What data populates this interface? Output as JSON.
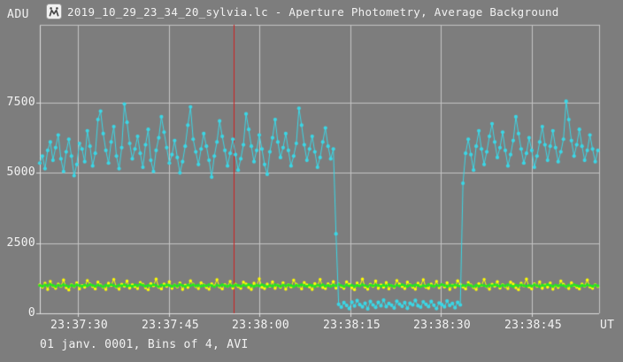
{
  "window": {
    "bg": "#7d7d7d"
  },
  "header": {
    "adu_label": "ADU",
    "icon_name": "tangra-app-icon",
    "title": "2019_10_29_23_34_20_sylvia.lc - Aperture Photometry, Average Background"
  },
  "footer": {
    "text": "01 janv. 0001, Bins of 4, AVI"
  },
  "colors": {
    "background": "#7d7d7d",
    "grid": "#c4c4c4",
    "axis": "#dedede",
    "text": "#f2f2f2",
    "cursor": "#cc2222",
    "target": "#3ad7e6",
    "comp_yellow": "#ffff00",
    "comp_green": "#22e522"
  },
  "chart_data": {
    "type": "scatter",
    "title": "Aperture Photometry, Average Background",
    "x_axis": {
      "label": "UT",
      "tick_labels": [
        "23:37:30",
        "23:37:45",
        "23:38:00",
        "23:38:15",
        "23:38:30",
        "23:38:45"
      ],
      "tick_seconds": [
        0,
        15,
        30,
        45,
        60,
        75
      ],
      "range_seconds": [
        -6.3,
        86.3
      ]
    },
    "y_axis": {
      "label": "ADU",
      "tick_labels": [
        "0",
        "2500",
        "5000",
        "7500"
      ],
      "tick_values": [
        0,
        2500,
        5000,
        7500
      ],
      "range": [
        0,
        10250
      ]
    },
    "cursor_second": 25.7,
    "event": {
      "description": "occultation drop of target light curve",
      "disappearance_second": 42.5,
      "reappearance_second": 63.5,
      "baseline_adu": 5900,
      "occulted_adu": 300
    },
    "sampling": {
      "start_second": -6.3,
      "interval_seconds": 0.437,
      "count": 212
    },
    "series": [
      {
        "name": "comparison-star-yellow",
        "color_key": "comp_yellow",
        "marker": "circle",
        "values": [
          1010,
          930,
          1070,
          850,
          1140,
          970,
          890,
          1040,
          960,
          1190,
          910,
          830,
          1020,
          950,
          1090,
          870,
          990,
          930,
          1170,
          1040,
          950,
          870,
          1110,
          1010,
          930,
          850,
          1070,
          990,
          1210,
          940,
          860,
          1030,
          970,
          1150,
          900,
          1020,
          950,
          880,
          1100,
          1030,
          910,
          840,
          1060,
          980,
          1220,
          930,
          870,
          1040,
          960,
          1130,
          890,
          1010,
          940,
          1080,
          850,
          1000,
          920,
          1160,
          1030,
          950,
          880,
          1090,
          1010,
          920,
          860,
          1050,
          970,
          1200,
          940,
          870,
          1020,
          960,
          1140,
          900,
          1030,
          950,
          890,
          1110,
          1040,
          920,
          850,
          1070,
          990,
          1230,
          930,
          880,
          1040,
          970,
          1120,
          890,
          1000,
          930,
          1090,
          860,
          1020,
          940,
          1180,
          1030,
          960,
          870,
          1100,
          1010,
          940,
          850,
          1060,
          980,
          1210,
          920,
          880,
          1050,
          970,
          1130,
          900,
          1040,
          950,
          890,
          1120,
          1030,
          910,
          840,
          1080,
          990,
          1220,
          940,
          860,
          1030,
          960,
          1150,
          890,
          1010,
          930,
          1100,
          870,
          990,
          920,
          1170,
          1040,
          950,
          880,
          1110,
          1020,
          930,
          860,
          1070,
          980,
          1200,
          930,
          890,
          1040,
          960,
          1140,
          910,
          1020,
          940,
          1090,
          850,
          1000,
          930,
          1160,
          1030,
          940,
          870,
          1100,
          1010,
          920,
          850,
          1060,
          990,
          1210,
          950,
          860,
          1030,
          970,
          1130,
          900,
          1020,
          950,
          880,
          1110,
          1040,
          910,
          840,
          1070,
          980,
          1220,
          940,
          870,
          1050,
          960,
          1120,
          890,
          1010,
          930,
          1080,
          860,
          990,
          920,
          1150,
          1030,
          950,
          880,
          1090,
          1000,
          930,
          870,
          1040,
          970,
          1190,
          940,
          890,
          1020,
          950
        ]
      },
      {
        "name": "comparison-star-green",
        "color_key": "comp_green",
        "marker": "circle",
        "values": [
          990,
          965,
          1010,
          980,
          1030,
          995,
          955,
          1005,
          975,
          1020,
          985,
          950,
          1000,
          970,
          1015,
          990,
          960,
          1005,
          980,
          1025,
          995,
          965,
          1010,
          985,
          945,
          1000,
          975,
          1020,
          990,
          955,
          1005,
          980,
          1015,
          970,
          995,
          960,
          1010,
          985,
          1030,
          1000,
          965,
          995,
          975,
          1020,
          990,
          950,
          1005,
          980,
          1010,
          995,
          960,
          1000,
          970,
          1025,
          990,
          955,
          1010,
          985,
          1015,
          975,
          1000,
          965,
          995,
          980,
          1020,
          990,
          950,
          1005,
          975,
          1015,
          985,
          960,
          1000,
          970,
          1010,
          995,
          965,
          1005,
          980,
          1025,
          990,
          955,
          1000,
          975,
          1020,
          985,
          950,
          995,
          970,
          1015,
          990,
          960,
          1005,
          980,
          1010,
          995,
          955,
          1000,
          975,
          1020,
          985,
          965,
          1010,
          990,
          950,
          1005,
          980,
          1015,
          970,
          995,
          960,
          1000,
          985,
          1025,
          990,
          955,
          1010,
          980,
          1000,
          965,
          995,
          975,
          1020,
          990,
          950,
          1005,
          980,
          1010,
          995,
          965,
          1000,
          970,
          1015,
          985,
          955,
          1005,
          975,
          1020,
          990,
          960,
          1000,
          980,
          1010,
          995,
          950,
          990,
          970,
          1015,
          985,
          965,
          1005,
          980,
          1025,
          995,
          955,
          1000,
          975,
          1010,
          990,
          960,
          995,
          980,
          1020,
          985,
          950,
          1000,
          970,
          1005,
          990,
          965,
          1010,
          980,
          1015,
          995,
          960,
          1000,
          975,
          1020,
          985,
          955,
          1005,
          980,
          1010,
          990,
          965,
          995,
          970,
          1015,
          985,
          950,
          1000,
          980,
          1025,
          995,
          960,
          1005,
          975,
          1010,
          990,
          955,
          1000,
          970,
          1015,
          985,
          965,
          995,
          980,
          1020,
          990,
          960,
          1005,
          975
        ]
      },
      {
        "name": "target-sylvia",
        "color_key": "target",
        "marker": "circle",
        "values": [
          5350,
          5600,
          5150,
          5800,
          6100,
          5450,
          5900,
          6350,
          5500,
          5050,
          5750,
          6200,
          5600,
          4900,
          5300,
          6050,
          5850,
          5400,
          6500,
          5950,
          5250,
          5700,
          6900,
          7200,
          6400,
          5800,
          5350,
          6100,
          6650,
          5600,
          5150,
          5900,
          7450,
          6800,
          6050,
          5500,
          5850,
          6300,
          5700,
          5200,
          6000,
          6550,
          5450,
          5050,
          5800,
          6250,
          7000,
          6450,
          5900,
          5350,
          5650,
          6150,
          5550,
          5000,
          5400,
          5950,
          6700,
          7350,
          6200,
          5750,
          5300,
          5850,
          6400,
          5950,
          5450,
          4850,
          5600,
          6100,
          6850,
          6300,
          5800,
          5250,
          5700,
          6200,
          5650,
          5100,
          5500,
          6000,
          7100,
          6550,
          5950,
          5400,
          5800,
          6350,
          5850,
          5300,
          4950,
          5750,
          6250,
          6900,
          6100,
          5550,
          5900,
          6400,
          5800,
          5250,
          5600,
          6050,
          7300,
          6700,
          6000,
          5450,
          5850,
          6300,
          5750,
          5200,
          5550,
          6100,
          6600,
          5950,
          5500,
          5850,
          2830,
          320,
          220,
          380,
          280,
          170,
          400,
          260,
          450,
          310,
          230,
          360,
          160,
          420,
          300,
          210,
          390,
          270,
          470,
          240,
          350,
          290,
          190,
          430,
          330,
          250,
          380,
          180,
          360,
          300,
          460,
          270,
          220,
          410,
          320,
          240,
          420,
          290,
          170,
          370,
          310,
          230,
          440,
          280,
          350,
          200,
          390,
          300,
          4630,
          5700,
          6200,
          5650,
          5100,
          5950,
          6500,
          5850,
          5300,
          5750,
          6300,
          6750,
          6100,
          5550,
          5900,
          6450,
          5800,
          5250,
          5650,
          6150,
          7000,
          6400,
          5850,
          5350,
          5700,
          6250,
          5800,
          5200,
          5600,
          6100,
          6650,
          6000,
          5450,
          5950,
          6500,
          5900,
          5400,
          5750,
          6200,
          7550,
          6900,
          6150,
          5600,
          6000,
          6550,
          5950,
          5450,
          5800,
          6350,
          5850,
          5400,
          5800
        ]
      }
    ]
  }
}
